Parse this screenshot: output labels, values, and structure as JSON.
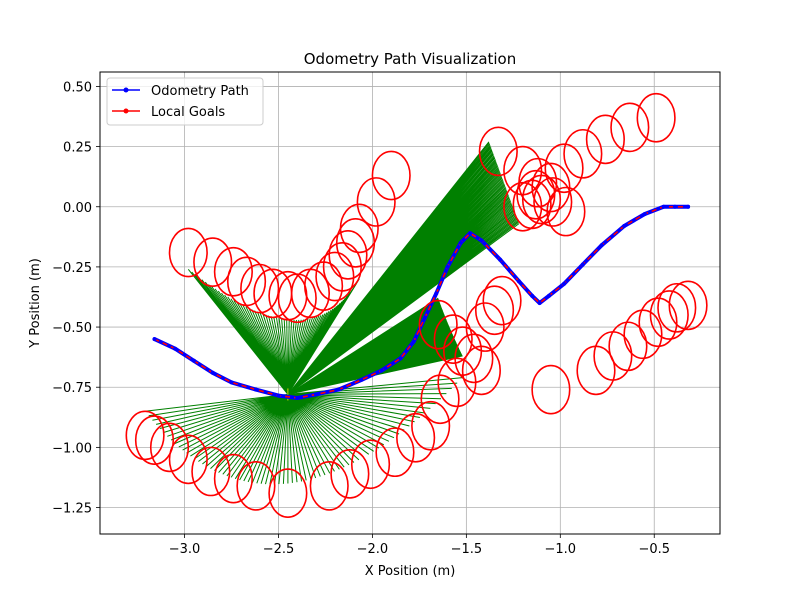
{
  "chart_data": {
    "type": "line",
    "title": "Odometry Path Visualization",
    "xlabel": "X Position (m)",
    "ylabel": "Y Position (m)",
    "xlim": [
      -3.45,
      -0.15
    ],
    "ylim": [
      -1.36,
      0.56
    ],
    "xticks": [
      -3.0,
      -2.5,
      -2.0,
      -1.5,
      -1.0,
      -0.5
    ],
    "xtick_labels": [
      "−3.0",
      "−2.5",
      "−2.0",
      "−1.5",
      "−1.0",
      "−0.5"
    ],
    "yticks": [
      -1.25,
      -1.0,
      -0.75,
      -0.5,
      -0.25,
      0.0,
      0.25,
      0.5
    ],
    "ytick_labels": [
      "−1.25",
      "−1.00",
      "−0.75",
      "−0.50",
      "−0.25",
      "0.00",
      "0.25",
      "0.50"
    ],
    "grid": true,
    "legend": {
      "position": "top-left",
      "entries": [
        {
          "label": "Odometry Path",
          "color": "#0000ff"
        },
        {
          "label": "Local Goals",
          "color": "#ff0000"
        }
      ]
    },
    "odometry_path": {
      "color": "#0000ff",
      "points": [
        [
          -3.16,
          -0.55
        ],
        [
          -3.05,
          -0.59
        ],
        [
          -2.95,
          -0.64
        ],
        [
          -2.85,
          -0.69
        ],
        [
          -2.75,
          -0.73
        ],
        [
          -2.62,
          -0.76
        ],
        [
          -2.5,
          -0.785
        ],
        [
          -2.4,
          -0.795
        ],
        [
          -2.3,
          -0.78
        ],
        [
          -2.18,
          -0.76
        ],
        [
          -2.06,
          -0.72
        ],
        [
          -1.95,
          -0.68
        ],
        [
          -1.85,
          -0.63
        ],
        [
          -1.78,
          -0.56
        ],
        [
          -1.72,
          -0.46
        ],
        [
          -1.66,
          -0.36
        ],
        [
          -1.6,
          -0.25
        ],
        [
          -1.53,
          -0.15
        ],
        [
          -1.48,
          -0.11
        ],
        [
          -1.42,
          -0.14
        ],
        [
          -1.32,
          -0.22
        ],
        [
          -1.22,
          -0.31
        ],
        [
          -1.15,
          -0.37
        ],
        [
          -1.11,
          -0.4
        ],
        [
          -1.06,
          -0.37
        ],
        [
          -0.98,
          -0.32
        ],
        [
          -0.88,
          -0.24
        ],
        [
          -0.78,
          -0.16
        ],
        [
          -0.66,
          -0.08
        ],
        [
          -0.55,
          -0.03
        ],
        [
          -0.45,
          0.0
        ],
        [
          -0.39,
          0.0
        ],
        [
          -0.32,
          0.0
        ]
      ]
    },
    "local_goals": {
      "color": "#ff0000",
      "ellipse_rx": 0.1,
      "ellipse_ry": 0.1,
      "points": [
        [
          -2.98,
          -0.19
        ],
        [
          -2.85,
          -0.23
        ],
        [
          -2.74,
          -0.27
        ],
        [
          -2.67,
          -0.31
        ],
        [
          -2.6,
          -0.34
        ],
        [
          -2.53,
          -0.36
        ],
        [
          -2.45,
          -0.37
        ],
        [
          -2.4,
          -0.38
        ],
        [
          -2.33,
          -0.36
        ],
        [
          -2.26,
          -0.33
        ],
        [
          -2.2,
          -0.29
        ],
        [
          -2.16,
          -0.25
        ],
        [
          -2.13,
          -0.2
        ],
        [
          -2.09,
          -0.15
        ],
        [
          -2.07,
          -0.09
        ],
        [
          -1.98,
          0.02
        ],
        [
          -1.9,
          0.13
        ],
        [
          -1.33,
          0.23
        ],
        [
          -1.2,
          0.15
        ],
        [
          -1.12,
          0.1
        ],
        [
          -1.05,
          0.08
        ],
        [
          -1.13,
          0.05
        ],
        [
          -1.1,
          0.03
        ],
        [
          -1.04,
          0.02
        ],
        [
          -1.15,
          0.01
        ],
        [
          -1.2,
          0.0
        ],
        [
          -0.97,
          -0.02
        ],
        [
          -0.98,
          0.16
        ],
        [
          -0.88,
          0.22
        ],
        [
          -0.76,
          0.28
        ],
        [
          -0.63,
          0.33
        ],
        [
          -0.49,
          0.37
        ],
        [
          -1.65,
          -0.49
        ],
        [
          -1.57,
          -0.55
        ],
        [
          -1.52,
          -0.6
        ],
        [
          -1.46,
          -0.63
        ],
        [
          -1.42,
          -0.68
        ],
        [
          -1.4,
          -0.5
        ],
        [
          -1.35,
          -0.43
        ],
        [
          -1.31,
          -0.39
        ],
        [
          -1.55,
          -0.73
        ],
        [
          -1.64,
          -0.8
        ],
        [
          -1.69,
          -0.91
        ],
        [
          -1.77,
          -0.96
        ],
        [
          -1.88,
          -1.02
        ],
        [
          -2.01,
          -1.07
        ],
        [
          -2.12,
          -1.11
        ],
        [
          -2.23,
          -1.16
        ],
        [
          -2.45,
          -1.19
        ],
        [
          -2.62,
          -1.16
        ],
        [
          -2.74,
          -1.13
        ],
        [
          -2.86,
          -1.1
        ],
        [
          -2.98,
          -1.05
        ],
        [
          -3.08,
          -1.0
        ],
        [
          -3.16,
          -0.97
        ],
        [
          -3.21,
          -0.95
        ],
        [
          -0.81,
          -0.68
        ],
        [
          -0.72,
          -0.62
        ],
        [
          -0.64,
          -0.58
        ],
        [
          -0.56,
          -0.53
        ],
        [
          -0.48,
          -0.48
        ],
        [
          -0.42,
          -0.45
        ],
        [
          -0.38,
          -0.42
        ],
        [
          -0.32,
          -0.41
        ],
        [
          -1.05,
          -0.76
        ]
      ]
    },
    "green_fans": {
      "color": "#008000",
      "origin": [
        -2.45,
        -0.78
      ],
      "fans": [
        {
          "from": [
            -2.98,
            -0.26
          ],
          "to": [
            -2.07,
            -0.3
          ],
          "through": [
            -2.43,
            -0.47
          ]
        },
        {
          "from": [
            -1.38,
            0.27
          ],
          "to": [
            -1.22,
            -0.07
          ],
          "through": [
            -1.3,
            0.1
          ]
        },
        {
          "from": [
            -1.65,
            -0.38
          ],
          "to": [
            -1.52,
            -0.62
          ],
          "through": [
            -1.59,
            -0.5
          ]
        },
        {
          "from": [
            -1.52,
            -0.71
          ],
          "to": [
            -3.21,
            -0.85
          ],
          "through": [
            -2.45,
            -1.15
          ]
        }
      ]
    }
  }
}
